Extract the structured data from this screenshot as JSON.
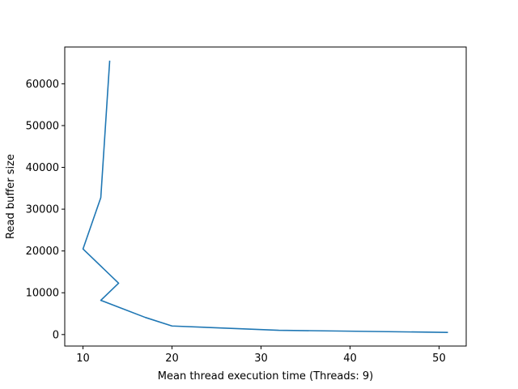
{
  "chart_data": {
    "type": "line",
    "title": "",
    "xlabel": "Mean thread execution time (Threads: 9)",
    "ylabel": "Read buffer size",
    "xlim": [
      7.95,
      53.05
    ],
    "ylim": [
      -2750,
      68800
    ],
    "xticks": [
      10,
      20,
      30,
      40,
      50
    ],
    "yticks": [
      0,
      10000,
      20000,
      30000,
      40000,
      50000,
      60000
    ],
    "grid": false,
    "series": [
      {
        "color": "#1f77b4",
        "x": [
          51,
          32,
          20,
          17,
          12,
          14,
          10,
          12,
          13
        ],
        "y": [
          512,
          1024,
          2048,
          4096,
          8192,
          12288,
          20480,
          32768,
          65536
        ]
      }
    ]
  }
}
